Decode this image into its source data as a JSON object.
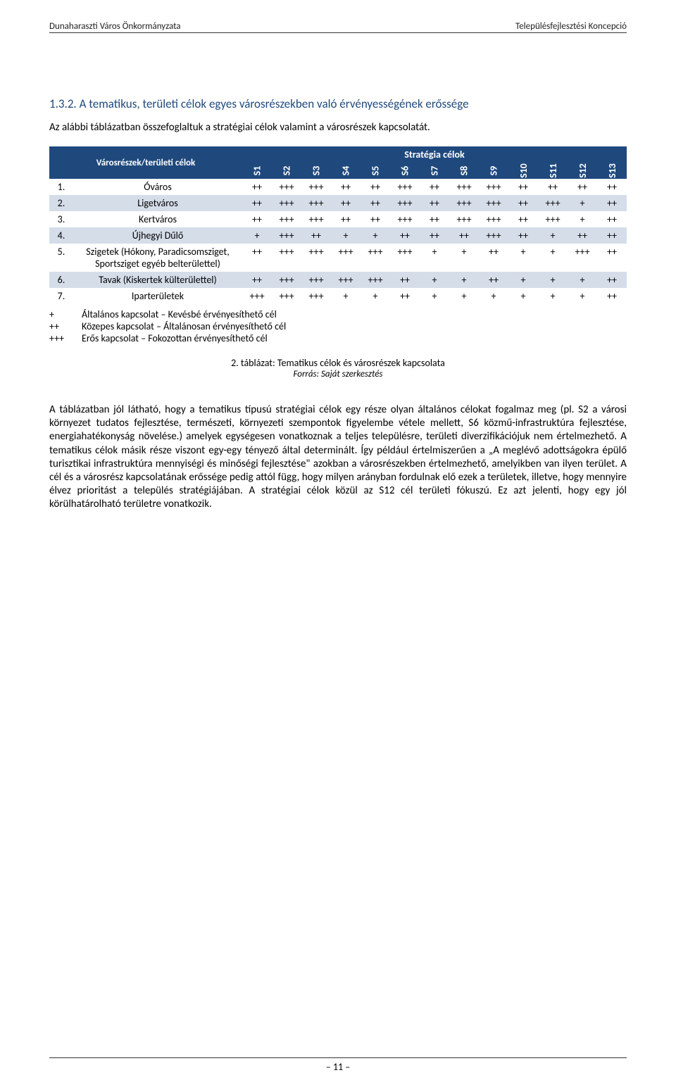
{
  "header": {
    "left": "Dunaharaszti Város Önkormányzata",
    "right": "Településfejlesztési Koncepció"
  },
  "section": {
    "number": "1.3.2.",
    "title": "A tematikus, területi célok egyes városrészekben való érvényességének erőssége"
  },
  "intro": "Az alábbi táblázatban összefoglaltuk a stratégiai célok valamint a városrészek kapcsolatát.",
  "table": {
    "top_header": "Stratégia célok",
    "row_header": "Városrészek/területi célok",
    "columns": [
      "S1",
      "S2",
      "S3",
      "S4",
      "S5",
      "S6",
      "S7",
      "S8",
      "S9",
      "S10",
      "S11",
      "S12",
      "S13"
    ],
    "header_bg": "#1f497d",
    "zebra_bg": "#d5dde9",
    "rows": [
      {
        "n": "1.",
        "label": "Óváros",
        "cells": [
          "++",
          "+++",
          "+++",
          "++",
          "++",
          "+++",
          "++",
          "+++",
          "+++",
          "++",
          "++",
          "++",
          "++"
        ],
        "zebra": false
      },
      {
        "n": "2.",
        "label": "Ligetváros",
        "cells": [
          "++",
          "+++",
          "+++",
          "++",
          "++",
          "+++",
          "++",
          "+++",
          "+++",
          "++",
          "+++",
          "+",
          "++"
        ],
        "zebra": true
      },
      {
        "n": "3.",
        "label": "Kertváros",
        "cells": [
          "++",
          "+++",
          "+++",
          "++",
          "++",
          "+++",
          "++",
          "+++",
          "+++",
          "++",
          "+++",
          "+",
          "++"
        ],
        "zebra": false
      },
      {
        "n": "4.",
        "label": "Újhegyi Dűlő",
        "cells": [
          "+",
          "+++",
          "++",
          "+",
          "+",
          "++",
          "++",
          "++",
          "+++",
          "++",
          "+",
          "++",
          "++"
        ],
        "zebra": true
      },
      {
        "n": "5.",
        "label": "Szigetek (Hókony, Paradicsomsziget, Sportsziget egyéb belterülettel)",
        "cells": [
          "++",
          "+++",
          "+++",
          "+++",
          "+++",
          "+++",
          "+",
          "+",
          "++",
          "+",
          "+",
          "+++",
          "++"
        ],
        "zebra": false
      },
      {
        "n": "6.",
        "label": "Tavak (Kiskertek külterülettel)",
        "cells": [
          "++",
          "+++",
          "+++",
          "+++",
          "+++",
          "++",
          "+",
          "+",
          "++",
          "+",
          "+",
          "+",
          "++"
        ],
        "zebra": true
      },
      {
        "n": "7.",
        "label": "Iparterületek",
        "cells": [
          "+++",
          "+++",
          "+++",
          "+",
          "+",
          "++",
          "+",
          "+",
          "+",
          "+",
          "+",
          "+",
          "++"
        ],
        "zebra": false
      }
    ]
  },
  "legend": [
    {
      "sym": "+",
      "text": "Általános kapcsolat – Kevésbé érvényesíthető cél"
    },
    {
      "sym": "++",
      "text": "Közepes kapcsolat – Általánosan érvényesíthető cél"
    },
    {
      "sym": "+++",
      "text": "Erős kapcsolat – Fokozottan érvényesíthető cél"
    }
  ],
  "caption": {
    "line1": "2. táblázat: Tematikus célok és városrészek kapcsolata",
    "line2": "Forrás: Saját szerkesztés"
  },
  "body": "A táblázatban jól látható, hogy a tematikus típusú stratégiai célok egy része olyan általános célokat fogalmaz meg (pl. S2 a városi környezet tudatos fejlesztése, természeti, környezeti szempontok figyelembe vétele mellett, S6 közmű-infrastruktúra fejlesztése, energiahatékonyság növelése.) amelyek egységesen vonatkoznak a teljes településre, területi diverzifikációjuk nem értelmezhető. A tematikus célok másik része viszont egy-egy tényező által determinált. Így például értelmiszerűen a „A meglévő adottságokra épülő turisztikai infrastruktúra mennyiségi és minőségi fejlesztése\" azokban a városrészekben értelmezhető, amelyikben van ilyen terület. A cél és a városrész kapcsolatának erőssége pedig attól függ, hogy milyen arányban fordulnak elő ezek a területek, illetve, hogy mennyire élvez prioritást a település stratégiájában. A stratégiai célok közül az S12 cél területi fókuszú. Ez azt jelenti, hogy egy jól körülhatárolható területre vonatkozik.",
  "footer": "– 11 –"
}
